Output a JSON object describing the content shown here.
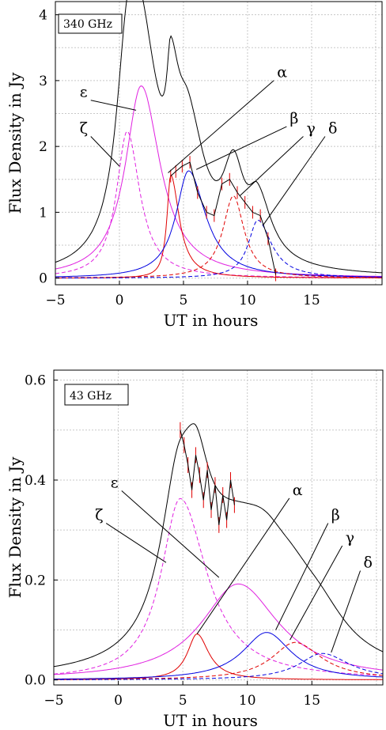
{
  "chart_data": [
    {
      "type": "line",
      "label": "340 GHz",
      "xlabel": "UT in hours",
      "ylabel": "Flux Density in Jy",
      "xlim": [
        -5,
        20.5
      ],
      "ylim": [
        -0.1,
        4.2
      ],
      "xticks": [
        -5,
        0,
        5,
        10,
        15
      ],
      "yticks": [
        0,
        1,
        2,
        3,
        4
      ],
      "grid": true,
      "colors": {
        "total": "#000000",
        "epsilon": "#e020e0",
        "zeta": "#e020e0",
        "alpha": "#0000e0",
        "beta": "#e00000",
        "gamma": "#e00000",
        "delta": "#0000e0",
        "data": "#e00000"
      },
      "components": [
        {
          "name": "ζ",
          "center": 0.6,
          "amplitude": 2.23,
          "rise": 1.0,
          "decay": 1.2,
          "style": "dashed",
          "color": "#e020e0"
        },
        {
          "name": "ε",
          "center": 1.7,
          "amplitude": 2.92,
          "rise": 1.5,
          "decay": 1.8,
          "style": "solid",
          "color": "#e020e0"
        },
        {
          "name": "β",
          "center": 4.0,
          "amplitude": 1.57,
          "rise": 0.35,
          "decay": 0.8,
          "style": "solid",
          "color": "#e00000"
        },
        {
          "name": "α",
          "center": 5.4,
          "amplitude": 1.63,
          "rise": 1.2,
          "decay": 1.6,
          "style": "solid",
          "color": "#0000e0"
        },
        {
          "name": "γ",
          "center": 8.9,
          "amplitude": 1.25,
          "rise": 1.0,
          "decay": 1.0,
          "style": "dashed",
          "color": "#e00000"
        },
        {
          "name": "δ",
          "center": 10.8,
          "amplitude": 0.88,
          "rise": 0.9,
          "decay": 1.3,
          "style": "dashed",
          "color": "#0000e0"
        }
      ],
      "observed": {
        "x": [
          4.0,
          4.4,
          4.9,
          5.5,
          6.1,
          6.8,
          7.4,
          8.0,
          8.6,
          9.2,
          9.8,
          10.4,
          11.0,
          11.6,
          12.2
        ],
        "y": [
          1.55,
          1.62,
          1.7,
          1.76,
          1.3,
          1.0,
          0.95,
          1.43,
          1.5,
          1.3,
          1.15,
          1.0,
          0.95,
          0.6,
          0.05
        ]
      },
      "labels": [
        {
          "text": "ε",
          "tx": -3.1,
          "ty": 2.75,
          "px": 1.3,
          "py": 2.55
        },
        {
          "text": "ζ",
          "tx": -3.1,
          "ty": 2.2,
          "px": 0.0,
          "py": 1.7
        },
        {
          "text": "α",
          "tx": 12.3,
          "ty": 3.05,
          "px": 3.8,
          "py": 1.6
        },
        {
          "text": "β",
          "tx": 13.3,
          "ty": 2.35,
          "px": 6.0,
          "py": 1.65
        },
        {
          "text": "γ",
          "tx": 14.6,
          "ty": 2.2,
          "px": 9.4,
          "py": 1.25
        },
        {
          "text": "δ",
          "tx": 16.3,
          "ty": 2.2,
          "px": 11.2,
          "py": 0.8
        }
      ]
    },
    {
      "type": "line",
      "label": "43 GHz",
      "xlabel": "UT in hours",
      "ylabel": "Flux Density in Jy",
      "xlim": [
        -5,
        20.5
      ],
      "ylim": [
        -0.01,
        0.62
      ],
      "xticks": [
        -5,
        0,
        5,
        10,
        15
      ],
      "yticks": [
        0.0,
        0.2,
        0.4,
        0.6
      ],
      "ytick_labels": [
        "0.0",
        "0.2",
        "0.4",
        "0.6"
      ],
      "grid": true,
      "components": [
        {
          "name": "ζ",
          "center": 4.8,
          "amplitude": 0.363,
          "rise": 1.8,
          "decay": 2.5,
          "style": "dashed",
          "color": "#e020e0"
        },
        {
          "name": "ε",
          "center": 9.3,
          "amplitude": 0.192,
          "rise": 3.5,
          "decay": 3.8,
          "style": "solid",
          "color": "#e020e0"
        },
        {
          "name": "β",
          "center": 6.1,
          "amplitude": 0.092,
          "rise": 0.9,
          "decay": 1.1,
          "style": "solid",
          "color": "#e00000"
        },
        {
          "name": "α",
          "center": 11.5,
          "amplitude": 0.095,
          "rise": 2.3,
          "decay": 2.3,
          "style": "solid",
          "color": "#0000e0"
        },
        {
          "name": "γ",
          "center": 13.7,
          "amplitude": 0.075,
          "rise": 2.2,
          "decay": 2.5,
          "style": "dashed",
          "color": "#e00000"
        },
        {
          "name": "δ",
          "center": 15.8,
          "amplitude": 0.053,
          "rise": 2.2,
          "decay": 2.6,
          "style": "dashed",
          "color": "#0000e0"
        }
      ],
      "observed": {
        "x": [
          4.8,
          5.1,
          5.4,
          5.7,
          6.0,
          6.3,
          6.6,
          6.9,
          7.2,
          7.5,
          7.8,
          8.1,
          8.4,
          8.7,
          9.0
        ],
        "y": [
          0.5,
          0.47,
          0.43,
          0.38,
          0.45,
          0.41,
          0.36,
          0.42,
          0.34,
          0.39,
          0.31,
          0.37,
          0.32,
          0.4,
          0.35
        ]
      },
      "labels": [
        {
          "text": "ε",
          "tx": -0.6,
          "ty": 0.385,
          "px": 7.8,
          "py": 0.205
        },
        {
          "text": "ζ",
          "tx": -1.8,
          "ty": 0.32,
          "px": 3.7,
          "py": 0.235
        },
        {
          "text": "α",
          "tx": 13.5,
          "ty": 0.37,
          "px": 6.1,
          "py": 0.092
        },
        {
          "text": "β",
          "tx": 16.5,
          "ty": 0.32,
          "px": 12.2,
          "py": 0.1
        },
        {
          "text": "γ",
          "tx": 17.6,
          "ty": 0.275,
          "px": 13.3,
          "py": 0.08
        },
        {
          "text": "δ",
          "tx": 19.0,
          "ty": 0.225,
          "px": 16.5,
          "py": 0.055
        }
      ]
    }
  ]
}
